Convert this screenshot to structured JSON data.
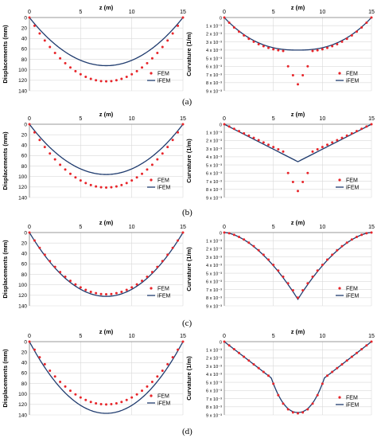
{
  "figure": {
    "panel_labels": [
      "(a)",
      "(b)",
      "(c)",
      "(d)"
    ]
  },
  "colors": {
    "fem": "#e8262b",
    "ifem": "#1f3b6e",
    "grid": "#d9d9d9",
    "axis": "#7f7f7f"
  },
  "chart_data": [
    {
      "id": "a-disp",
      "type": "scatter+line",
      "xlabel": "z (m)",
      "ylabel": "Displacements (mm)",
      "xlim": [
        0,
        15
      ],
      "xticks": [
        0,
        5,
        10,
        15
      ],
      "ylim": [
        0,
        140
      ],
      "yticks": [
        0,
        20,
        40,
        60,
        80,
        100,
        120,
        140
      ],
      "y_inverted": true,
      "ytick_labels": [
        "0",
        "20",
        "40",
        "60",
        "80",
        "100",
        "120",
        "140"
      ],
      "legend": {
        "position": "right",
        "fem_label": "FEM",
        "ifem_label": "iFEM"
      },
      "fem": {
        "shape": "parabola",
        "peak": 122
      },
      "ifem": {
        "shape": "parabola",
        "peak": 92
      }
    },
    {
      "id": "a-curv",
      "type": "scatter+line",
      "xlabel": "z (m)",
      "ylabel": "Curvature (1/m)",
      "xlim": [
        0,
        15
      ],
      "xticks": [
        0,
        5,
        10,
        15
      ],
      "ylim": [
        0,
        0.009
      ],
      "y_inverted": true,
      "ytick_labels": [
        "0",
        "1 x 10⁻³",
        "2 x 10⁻³",
        "3 x 10⁻³",
        "4 x 10⁻³",
        "5 x 10⁻³",
        "6 x 10⁻³",
        "7 x 10⁻³",
        "8 x 10⁻³",
        "9 x 10⁻³"
      ],
      "legend": {
        "position": "right",
        "fem_label": "FEM",
        "ifem_label": "iFEM"
      },
      "fem": {
        "shape": "flat-spike",
        "peak": 0.0042,
        "spike": 0.0082,
        "spike_halfwidth": 1.3
      },
      "ifem": {
        "shape": "flat",
        "peak": 0.004
      }
    },
    {
      "id": "b-disp",
      "type": "scatter+line",
      "xlabel": "z (m)",
      "ylabel": "Displacements (mm)",
      "xlim": [
        0,
        15
      ],
      "xticks": [
        0,
        5,
        10,
        15
      ],
      "ylim": [
        0,
        140
      ],
      "y_inverted": true,
      "ytick_labels": [
        "0",
        "20",
        "40",
        "60",
        "80",
        "100",
        "120",
        "140"
      ],
      "legend": {
        "position": "right",
        "fem_label": "FEM",
        "ifem_label": "iFEM"
      },
      "fem": {
        "shape": "parabola",
        "peak": 121
      },
      "ifem": {
        "shape": "parabola",
        "peak": 96
      }
    },
    {
      "id": "b-curv",
      "type": "scatter+line",
      "xlabel": "z (m)",
      "ylabel": "Curvature (1/m)",
      "xlim": [
        0,
        15
      ],
      "xticks": [
        0,
        5,
        10,
        15
      ],
      "ylim": [
        0,
        0.009
      ],
      "y_inverted": true,
      "ytick_labels": [
        "0",
        "1 x 10⁻³",
        "2 x 10⁻³",
        "3 x 10⁻³",
        "4 x 10⁻³",
        "5 x 10⁻³",
        "6 x 10⁻³",
        "7 x 10⁻³",
        "8 x 10⁻³",
        "9 x 10⁻³"
      ],
      "legend": {
        "position": "right",
        "fem_label": "FEM",
        "ifem_label": "iFEM"
      },
      "fem": {
        "shape": "vee-spike",
        "peak": 0.0042,
        "spike": 0.0082,
        "spike_halfwidth": 1.3
      },
      "ifem": {
        "shape": "vee",
        "peak": 0.0046
      }
    },
    {
      "id": "c-disp",
      "type": "scatter+line",
      "xlabel": "z (m)",
      "ylabel": "Displacements (mm)",
      "xlim": [
        0,
        15
      ],
      "xticks": [
        0,
        5,
        10,
        15
      ],
      "ylim": [
        0,
        140
      ],
      "y_inverted": true,
      "ytick_labels": [
        "0",
        "20",
        "40",
        "60",
        "80",
        "100",
        "120",
        "140"
      ],
      "legend": {
        "position": "right",
        "fem_label": "FEM",
        "ifem_label": "iFEM"
      },
      "fem": {
        "shape": "parabola",
        "peak": 118
      },
      "ifem": {
        "shape": "parabola",
        "peak": 122
      }
    },
    {
      "id": "c-curv",
      "type": "scatter+line",
      "xlabel": "z (m)",
      "ylabel": "Curvature (1/m)",
      "xlim": [
        0,
        15
      ],
      "xticks": [
        0,
        5,
        10,
        15
      ],
      "ylim": [
        0,
        0.009
      ],
      "y_inverted": true,
      "ytick_labels": [
        "0",
        "1 x 10⁻³",
        "2 x 10⁻³",
        "3 x 10⁻³",
        "4 x 10⁻³",
        "5 x 10⁻³",
        "6 x 10⁻³",
        "7 x 10⁻³",
        "8 x 10⁻³",
        "9 x 10⁻³"
      ],
      "legend": {
        "position": "right",
        "fem_label": "FEM",
        "ifem_label": "iFEM"
      },
      "fem": {
        "shape": "cusp",
        "peak": 0.008
      },
      "ifem": {
        "shape": "cusp-line",
        "peak": 0.0082
      }
    },
    {
      "id": "d-disp",
      "type": "scatter+line",
      "xlabel": "z (m)",
      "ylabel": "Displacements (mm)",
      "xlim": [
        0,
        15
      ],
      "xticks": [
        0,
        5,
        10,
        15
      ],
      "ylim": [
        0,
        140
      ],
      "y_inverted": true,
      "ytick_labels": [
        "0",
        "20",
        "40",
        "60",
        "80",
        "100",
        "120",
        "140"
      ],
      "legend": {
        "position": "right",
        "fem_label": "FEM",
        "ifem_label": "iFEM"
      },
      "fem": {
        "shape": "parabola",
        "peak": 120
      },
      "ifem": {
        "shape": "parabola",
        "peak": 137
      }
    },
    {
      "id": "d-curv",
      "type": "scatter+line",
      "xlabel": "z (m)",
      "ylabel": "Curvature (1/m)",
      "xlim": [
        0,
        15
      ],
      "xticks": [
        0,
        5,
        10,
        15
      ],
      "ylim": [
        0,
        0.009
      ],
      "y_inverted": true,
      "ytick_labels": [
        "0",
        "1 x 10⁻³",
        "2 x 10⁻³",
        "3 x 10⁻³",
        "4 x 10⁻³",
        "5 x 10⁻³",
        "6 x 10⁻³",
        "7 x 10⁻³",
        "8 x 10⁻³",
        "9 x 10⁻³"
      ],
      "legend": {
        "position": "right",
        "fem_label": "FEM",
        "ifem_label": "iFEM"
      },
      "fem": {
        "shape": "bowl",
        "peak": 0.0088
      },
      "ifem": {
        "shape": "bowl-line",
        "peak": 0.0087
      }
    }
  ]
}
